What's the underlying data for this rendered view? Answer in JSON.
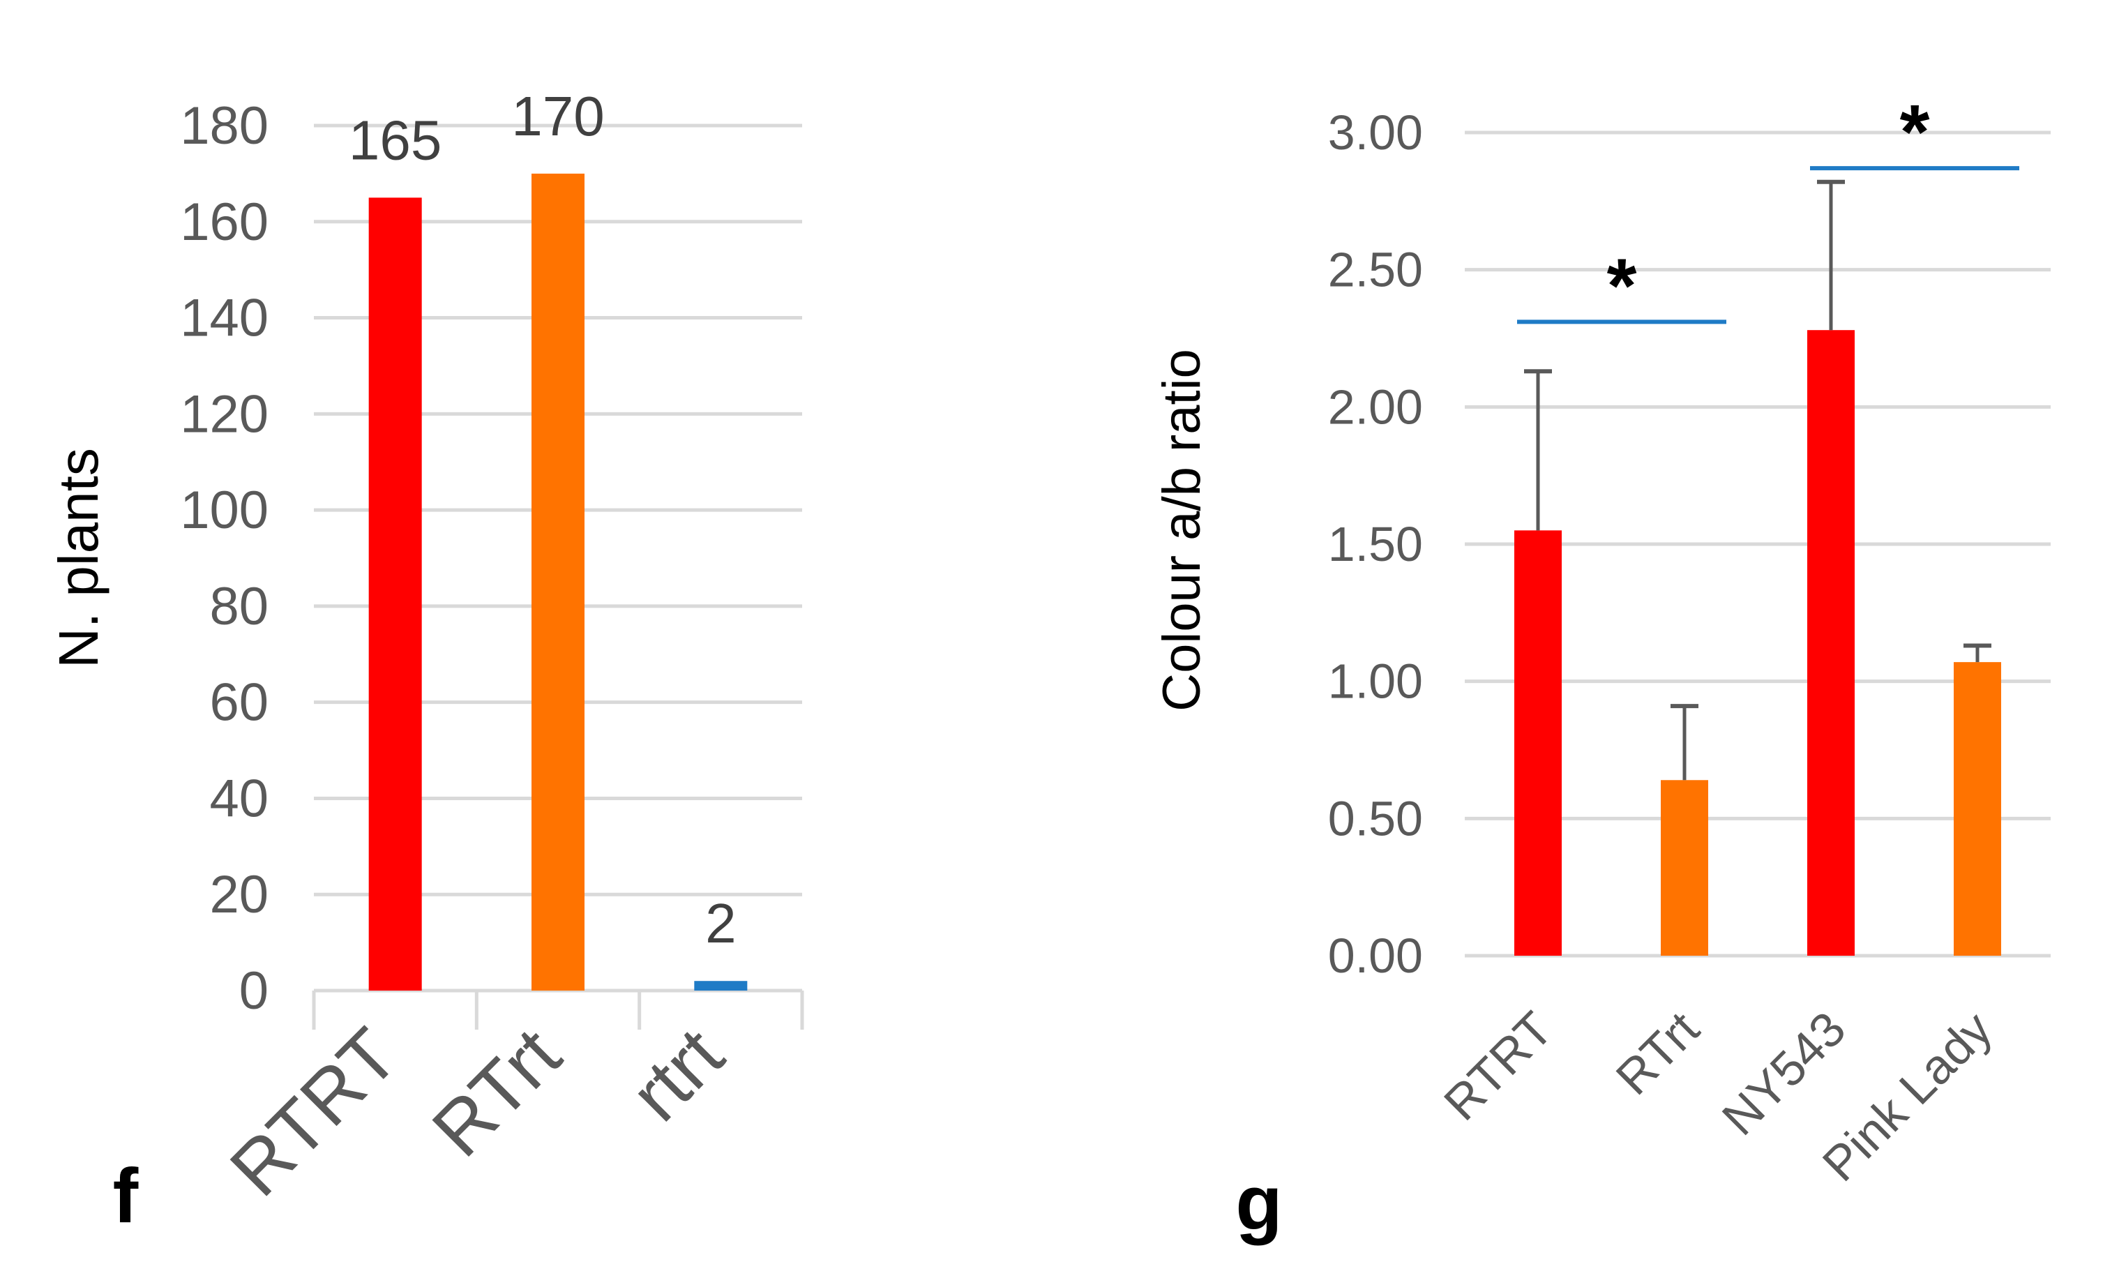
{
  "colors": {
    "red": "#ff0000",
    "orange": "#ff7300",
    "blue": "#1f7bc6",
    "grid": "#d9d9d9",
    "axis_text": "#595959",
    "dark_text": "#404040",
    "error_bar": "#595959",
    "black": "#000000"
  },
  "chart_data": [
    {
      "panel_label": "f",
      "type": "bar",
      "categories": [
        "RTRT",
        "RTrt",
        "rtrt"
      ],
      "values": [
        165,
        170,
        2
      ],
      "bar_colors": [
        "red",
        "orange",
        "blue"
      ],
      "data_labels": [
        "165",
        "170",
        "2"
      ],
      "ylabel": "N. plants",
      "ylim": [
        0,
        180
      ],
      "yticks": [
        "0",
        "20",
        "40",
        "60",
        "80",
        "100",
        "120",
        "140",
        "160",
        "180"
      ],
      "grid": true
    },
    {
      "panel_label": "g",
      "type": "bar",
      "categories": [
        "RTRT",
        "RTrt",
        "NY543",
        "Pink Lady"
      ],
      "values": [
        1.55,
        0.64,
        2.28,
        1.07
      ],
      "errors": [
        0.58,
        0.27,
        0.54,
        0.06
      ],
      "bar_colors": [
        "red",
        "orange",
        "red",
        "orange"
      ],
      "ylabel": "Colour a/b ratio",
      "ylim": [
        0,
        3
      ],
      "yticks": [
        "0.00",
        "0.50",
        "1.00",
        "1.50",
        "2.00",
        "2.50",
        "3.00"
      ],
      "grid": true,
      "significance": [
        {
          "between": [
            "RTRT",
            "RTrt"
          ],
          "level": 2.31,
          "label": "*"
        },
        {
          "between": [
            "NY543",
            "Pink Lady"
          ],
          "level": 2.87,
          "label": "*"
        }
      ]
    }
  ]
}
